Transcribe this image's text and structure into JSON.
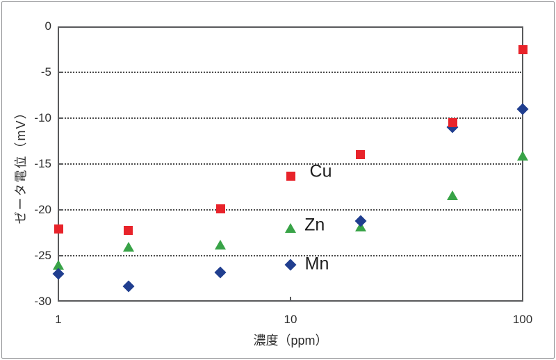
{
  "figure": {
    "background": "#ffffff",
    "border_color": "#8f9093",
    "axis_color": "#58595b",
    "gridline_color": "#4a4a4a",
    "text_color": "#2e2e2e"
  },
  "chart_data": {
    "type": "scatter",
    "title": "",
    "x_axis": {
      "label": "濃度（ppm）",
      "scale": "log",
      "min": 1,
      "max": 100,
      "ticks": [
        1,
        10,
        100
      ],
      "tick_labels": [
        "1",
        "10",
        "100"
      ]
    },
    "y_axis": {
      "label": "ゼータ電位（mV）",
      "min": -30,
      "max": 0,
      "ticks": [
        0,
        -5,
        -10,
        -15,
        -20,
        -25,
        -30
      ],
      "tick_labels": [
        "0",
        "-5",
        "-10",
        "-15",
        "-20",
        "-25",
        "-30"
      ],
      "gridlines": [
        -5,
        -10,
        -15,
        -20,
        -25
      ]
    },
    "x": [
      1,
      2,
      5,
      10,
      20,
      50,
      100
    ],
    "series": [
      {
        "name": "Zn",
        "marker": "triangle",
        "color": "#38A347",
        "values": [
          -26.0,
          -24.0,
          -23.8,
          -22.0,
          -21.8,
          -18.4,
          -14.1
        ]
      },
      {
        "name": "Mn",
        "marker": "diamond",
        "color": "#203E8F",
        "values": [
          -27.0,
          -28.3,
          -26.8,
          -26.0,
          -21.2,
          -11.0,
          -9.0
        ]
      },
      {
        "name": "Cu",
        "marker": "square",
        "color": "#E8232A",
        "values": [
          -22.1,
          -22.2,
          -19.9,
          -16.3,
          -14.0,
          -10.5,
          -2.5
        ]
      }
    ],
    "annotations": [
      {
        "text": "Cu",
        "x": 13.5,
        "y": -15.8
      },
      {
        "text": "Zn",
        "x": 12.7,
        "y": -21.7
      },
      {
        "text": "Mn",
        "x": 13.0,
        "y": -25.9
      }
    ],
    "legend": "inline-annotations",
    "grid": "horizontal-dotted"
  }
}
